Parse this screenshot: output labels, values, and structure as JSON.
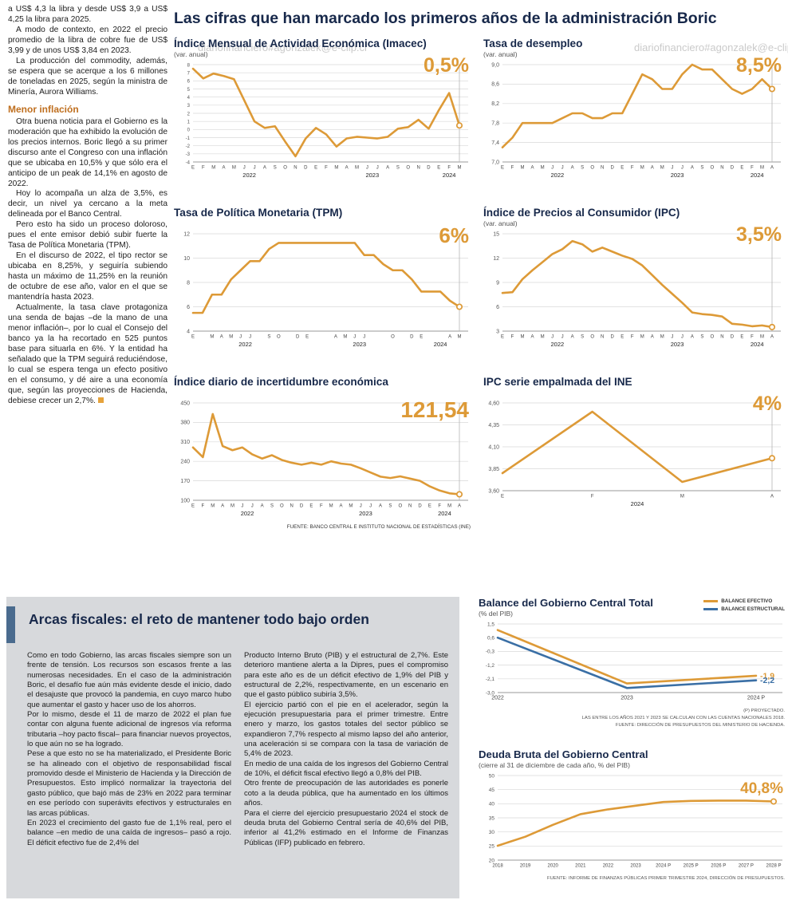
{
  "page": {
    "watermark": "diariofinanciero#agonzalek@e-clip.cl",
    "accent_orange": "#dd9a37",
    "accent_blue": "#3a6fa5",
    "panel_gray": "#d7d9dc"
  },
  "left_column": {
    "paragraphs": [
      "a US$ 4,3 la libra y desde US$ 3,9 a US$ 4,25 la libra para 2025.",
      "A modo de contexto, en 2022 el precio promedio de la libra de cobre fue de US$ 3,99 y de unos US$ 3,84 en 2023.",
      "La producción del commodity, además, se espera que se acerque a los 6 millones de toneladas en 2025, según la ministra de Minería, Aurora Williams."
    ],
    "heading": "Menor inflación",
    "paragraphs2": [
      "Otra buena noticia para el Gobierno es la moderación que ha exhibido la evolución de los precios internos. Boric llegó a su primer discurso ante el Congreso con una inflación que se ubicaba en 10,5% y que sólo era el anticipo de un peak de 14,1% en agosto de 2022.",
      "Hoy lo acompaña un alza de 3,5%, es decir, un nivel ya cercano a la meta delineada por el Banco Central.",
      "Pero esto ha sido un proceso doloroso, pues el ente emisor debió subir fuerte la Tasa de Política Monetaria (TPM).",
      "En el discurso de 2022, el tipo rector se ubicaba en 8,25%, y seguiría subiendo hasta un máximo de 11,25% en la reunión de octubre de ese año, valor en el que se mantendría hasta 2023.",
      "Actualmente, la tasa clave protagoniza una senda de bajas –de la mano de una menor inflación–, por lo cual el Consejo del banco ya la ha recortado en 525 puntos base para situarla en 6%. Y la entidad ha señalado que la TPM seguirá reduciéndose, lo cual se espera tenga un efecto positivo en el consumo, y dé aire a una economía que, según las proyecciones de Hacienda, debiese crecer un 2,7%."
    ]
  },
  "main": {
    "title": "Las cifras que han marcado los primeros años de la administración Boric",
    "source_ine": "FUENTE: BANCO CENTRAL E INSTITUTO NACIONAL DE ESTADÍSTICAS (INE)"
  },
  "fiscal": {
    "title": "Arcas fiscales: el reto de mantener todo bajo orden",
    "col1": [
      "Como en todo Gobierno, las arcas fiscales siempre son un frente de tensión. Los recursos son escasos frente a las numerosas necesidades. En el caso de la administración Boric, el desafío fue aún más evidente desde el inicio, dado el desajuste que provocó la pandemia, en cuyo marco hubo que aumentar el gasto y hacer uso de los ahorros.",
      "Por lo mismo, desde el 11 de marzo de 2022 el plan fue contar con alguna fuente adicional de ingresos vía reforma tributaria –hoy pacto fiscal– para financiar nuevos proyectos, lo que aún no se ha logrado.",
      "Pese a que esto no se ha materializado, el Presidente Boric se ha alineado con el objetivo de responsabilidad fiscal promovido desde el Ministerio de Hacienda y la Dirección de Presupuestos. Esto implicó normalizar la trayectoria del gasto público, que bajó más de 23% en 2022 para terminar en ese período con superávits efectivos y estructurales en las arcas públicas.",
      "En 2023 el crecimiento del gasto fue de 1,1% real, pero el balance –en medio de una caída de ingresos– pasó a rojo. El déficit efectivo fue de 2,4% del"
    ],
    "col2": [
      "Producto Interno Bruto (PIB) y el estructural de 2,7%. Este deterioro mantiene alerta a la Dipres, pues el compromiso para este año es de un déficit efectivo de 1,9% del PIB y estructural de 2,2%, respectivamente, en un escenario en que el gasto público subiría 3,5%.",
      "El ejercicio partió con el pie en el acelerador, según la ejecución presupuestaria para el primer trimestre. Entre enero y marzo, los gastos totales del sector público se expandieron 7,7% respecto al mismo lapso del año anterior, una aceleración si se compara con la tasa de variación de 5,4% de 2023.",
      "En medio de una caída de los ingresos del Gobierno Central de 10%, el déficit fiscal efectivo llegó a 0,8% del PIB.",
      "Otro frente de preocupación de las autoridades es ponerle coto a la deuda pública, que ha aumentado en los últimos años.",
      "Para el cierre del ejercicio presupuestario 2024 el stock de deuda bruta del Gobierno Central sería de 40,6% del PIB, inferior al 41,2% estimado en el Informe de Finanzas Públicas (IFP) publicado en febrero."
    ]
  },
  "chart_data": [
    {
      "id": "imacec",
      "type": "line",
      "title": "Índice Mensual de Actividad Económica (Imacec)",
      "subtitle": "(var. anual)",
      "big_value": "0,5%",
      "color": "#dd9a37",
      "ylim": [
        -4,
        8
      ],
      "yfont": 6,
      "yticks": [
        {
          "v": 8,
          "l": "8"
        },
        {
          "v": 7,
          "l": "7"
        },
        {
          "v": 6,
          "l": "6"
        },
        {
          "v": 5,
          "l": "5"
        },
        {
          "v": 4,
          "l": "4"
        },
        {
          "v": 3,
          "l": "3"
        },
        {
          "v": 2,
          "l": "2"
        },
        {
          "v": 1,
          "l": "1"
        },
        {
          "v": 0,
          "l": "0"
        },
        {
          "v": -1,
          "l": "-1"
        },
        {
          "v": -2,
          "l": "-2"
        },
        {
          "v": -3,
          "l": "-3"
        },
        {
          "v": -4,
          "l": "-4"
        }
      ],
      "x_labels": [
        "E",
        "F",
        "M",
        "A",
        "M",
        "J",
        "J",
        "A",
        "S",
        "O",
        "N",
        "D",
        "E",
        "F",
        "M",
        "A",
        "M",
        "J",
        "J",
        "A",
        "S",
        "O",
        "N",
        "D",
        "E",
        "F",
        "M"
      ],
      "years": [
        {
          "label": "2022",
          "at": 5.5
        },
        {
          "label": "2023",
          "at": 17.5
        },
        {
          "label": "2024",
          "at": 25
        }
      ],
      "values": [
        7.5,
        6.3,
        6.9,
        6.6,
        6.2,
        3.6,
        1.0,
        0.2,
        0.4,
        -1.5,
        -3.3,
        -1.1,
        0.2,
        -0.6,
        -2.1,
        -1.1,
        -0.9,
        -1.0,
        -1.1,
        -0.9,
        0.1,
        0.3,
        1.2,
        0.1,
        2.4,
        4.5,
        0.5
      ]
    },
    {
      "id": "desempleo",
      "type": "line",
      "title": "Tasa de desempleo",
      "subtitle": "(var. anual)",
      "big_value": "8,5%",
      "color": "#dd9a37",
      "ylim": [
        7.0,
        9.0
      ],
      "yticks": [
        {
          "v": 9.0,
          "l": "9,0"
        },
        {
          "v": 8.6,
          "l": "8,6"
        },
        {
          "v": 8.2,
          "l": "8,2"
        },
        {
          "v": 7.8,
          "l": "7,8"
        },
        {
          "v": 7.4,
          "l": "7,4"
        },
        {
          "v": 7.0,
          "l": "7,0"
        }
      ],
      "x_labels": [
        "E",
        "F",
        "M",
        "A",
        "M",
        "J",
        "J",
        "A",
        "S",
        "O",
        "N",
        "D",
        "E",
        "F",
        "M",
        "A",
        "M",
        "J",
        "J",
        "A",
        "S",
        "O",
        "N",
        "D",
        "E",
        "F",
        "M",
        "A"
      ],
      "years": [
        {
          "label": "2022",
          "at": 5.5
        },
        {
          "label": "2023",
          "at": 17.5
        },
        {
          "label": "2024",
          "at": 25.5
        }
      ],
      "values": [
        7.3,
        7.5,
        7.8,
        7.8,
        7.8,
        7.8,
        7.9,
        8.0,
        8.0,
        7.9,
        7.9,
        8.0,
        8.0,
        8.4,
        8.8,
        8.7,
        8.5,
        8.5,
        8.8,
        9.0,
        8.9,
        8.9,
        8.7,
        8.5,
        8.4,
        8.5,
        8.7,
        8.5
      ]
    },
    {
      "id": "tpm",
      "type": "line",
      "title": "Tasa de Política Monetaria (TPM)",
      "subtitle": "",
      "big_value": "6%",
      "color": "#dd9a37",
      "ylim": [
        4,
        12
      ],
      "yticks": [
        {
          "v": 12,
          "l": "12"
        },
        {
          "v": 10,
          "l": "10"
        },
        {
          "v": 8,
          "l": "8"
        },
        {
          "v": 6,
          "l": "6"
        },
        {
          "v": 4,
          "l": "4"
        }
      ],
      "x_labels": [
        "E",
        "",
        "M",
        "A",
        "M",
        "J",
        "J",
        "",
        "S",
        "O",
        "",
        "D",
        "E",
        "",
        "",
        "A",
        "M",
        "J",
        "J",
        "",
        "",
        "O",
        "",
        "D",
        "E",
        "",
        "",
        "A",
        "M"
      ],
      "years": [
        {
          "label": "2022",
          "at": 5.5
        },
        {
          "label": "2023",
          "at": 17.5
        },
        {
          "label": "2024",
          "at": 26
        }
      ],
      "values": [
        5.5,
        5.5,
        7.0,
        7.0,
        8.25,
        9.0,
        9.75,
        9.75,
        10.75,
        11.25,
        11.25,
        11.25,
        11.25,
        11.25,
        11.25,
        11.25,
        11.25,
        11.25,
        10.25,
        10.25,
        9.5,
        9.0,
        9.0,
        8.25,
        7.25,
        7.25,
        7.25,
        6.5,
        6.0
      ]
    },
    {
      "id": "ipc",
      "type": "line",
      "title": "Índice de Precios al Consumidor (IPC)",
      "subtitle": "(var. anual)",
      "big_value": "3,5%",
      "color": "#dd9a37",
      "ylim": [
        3,
        15
      ],
      "yticks": [
        {
          "v": 15,
          "l": "15"
        },
        {
          "v": 12,
          "l": "12"
        },
        {
          "v": 9,
          "l": "9"
        },
        {
          "v": 6,
          "l": "6"
        },
        {
          "v": 3,
          "l": "3"
        }
      ],
      "x_labels": [
        "E",
        "F",
        "M",
        "A",
        "M",
        "J",
        "J",
        "A",
        "S",
        "O",
        "N",
        "D",
        "E",
        "F",
        "M",
        "A",
        "M",
        "J",
        "J",
        "A",
        "S",
        "O",
        "N",
        "D",
        "E",
        "F",
        "M",
        "A"
      ],
      "years": [
        {
          "label": "2022",
          "at": 5.5
        },
        {
          "label": "2023",
          "at": 17.5
        },
        {
          "label": "2024",
          "at": 25.5
        }
      ],
      "values": [
        7.7,
        7.8,
        9.4,
        10.5,
        11.5,
        12.5,
        13.1,
        14.1,
        13.7,
        12.8,
        13.3,
        12.8,
        12.3,
        11.9,
        11.1,
        9.9,
        8.7,
        7.6,
        6.5,
        5.3,
        5.1,
        5.0,
        4.8,
        3.9,
        3.8,
        3.6,
        3.7,
        3.5
      ]
    },
    {
      "id": "incertidumbre",
      "type": "line",
      "title": "Índice diario de incertidumbre económica",
      "subtitle": "",
      "big_value": "121,54",
      "color": "#dd9a37",
      "ylim": [
        100,
        450
      ],
      "yticks": [
        {
          "v": 450,
          "l": "450"
        },
        {
          "v": 380,
          "l": "380"
        },
        {
          "v": 310,
          "l": "310"
        },
        {
          "v": 240,
          "l": "240"
        },
        {
          "v": 170,
          "l": "170"
        },
        {
          "v": 100,
          "l": "100"
        }
      ],
      "x_labels": [
        "E",
        "F",
        "M",
        "A",
        "M",
        "J",
        "J",
        "A",
        "S",
        "O",
        "N",
        "D",
        "E",
        "F",
        "M",
        "A",
        "M",
        "J",
        "J",
        "A",
        "S",
        "O",
        "N",
        "D",
        "E",
        "F",
        "M",
        "A"
      ],
      "years": [
        {
          "label": "2022",
          "at": 5.5
        },
        {
          "label": "2023",
          "at": 17.5
        },
        {
          "label": "2024",
          "at": 25.5
        }
      ],
      "values": [
        290,
        255,
        410,
        295,
        280,
        290,
        265,
        250,
        262,
        245,
        235,
        228,
        235,
        228,
        240,
        232,
        228,
        215,
        200,
        185,
        180,
        186,
        178,
        170,
        150,
        135,
        125,
        121.54
      ]
    },
    {
      "id": "ipc-empalmada",
      "type": "line",
      "title": "IPC serie empalmada del INE",
      "subtitle": "",
      "big_value": "4%",
      "color": "#dd9a37",
      "ylim": [
        3.6,
        4.6
      ],
      "yticks": [
        {
          "v": 4.6,
          "l": "4,60"
        },
        {
          "v": 4.35,
          "l": "4,35"
        },
        {
          "v": 4.1,
          "l": "4,10"
        },
        {
          "v": 3.85,
          "l": "3,85"
        },
        {
          "v": 3.6,
          "l": "3,60"
        }
      ],
      "x_labels": [
        "E",
        "F",
        "M",
        "A"
      ],
      "years": [
        {
          "label": "2024",
          "at": 1.5
        }
      ],
      "values": [
        3.8,
        4.5,
        3.7,
        3.97
      ]
    },
    {
      "id": "balance",
      "type": "line",
      "title": "Balance del Gobierno Central Total",
      "subtitle": "(% del PIB)",
      "big_value": "",
      "ylim": [
        -3.0,
        1.5
      ],
      "yfont": 6.5,
      "xfont": 7,
      "mr": 36,
      "end_line": false,
      "yticks": [
        {
          "v": 1.5,
          "l": "1,5"
        },
        {
          "v": 0.6,
          "l": "0,6"
        },
        {
          "v": -0.3,
          "l": "-0,3"
        },
        {
          "v": -1.2,
          "l": "-1,2"
        },
        {
          "v": -2.1,
          "l": "-2,1"
        },
        {
          "v": -3.0,
          "l": "-3,0"
        }
      ],
      "x_labels": [
        "2022",
        "2023",
        "2024 P"
      ],
      "series": [
        {
          "name": "BALANCE EFECTIVO",
          "color": "#dd9a37",
          "end_label": "-1,9",
          "values": [
            1.1,
            -2.4,
            -1.9
          ]
        },
        {
          "name": "BALANCE ESTRUCTURAL",
          "color": "#3a6fa5",
          "end_label": "-2,2",
          "values": [
            0.6,
            -2.7,
            -2.2
          ]
        }
      ],
      "legend": [
        "BALANCE EFECTIVO",
        "BALANCE ESTRUCTURAL"
      ],
      "notes": [
        "(P) PROYECTADO.",
        "LAS ENTRE LOS AÑOS 2021 Y 2023 SE CALCULAN  CON LAS CUENTAS NACIONALES 2018.",
        "FUENTE: DIRECCIÓN DE PRESUPUESTOS DEL MINISTERIO DE HACIENDA."
      ]
    },
    {
      "id": "deuda",
      "type": "line",
      "title": "Deuda Bruta del Gobierno Central",
      "subtitle": "(cierre al 31 de diciembre de cada año, % del PIB)",
      "big_value": "40,8%",
      "color": "#dd9a37",
      "ylim": [
        20,
        50
      ],
      "yfont": 6.5,
      "xfont": 6,
      "end_line": false,
      "yticks": [
        {
          "v": 50,
          "l": "50"
        },
        {
          "v": 45,
          "l": "45"
        },
        {
          "v": 40,
          "l": "40"
        },
        {
          "v": 35,
          "l": "35"
        },
        {
          "v": 30,
          "l": "30"
        },
        {
          "v": 25,
          "l": "25"
        },
        {
          "v": 20,
          "l": "20"
        }
      ],
      "x_labels": [
        "2018",
        "2019",
        "2020",
        "2021",
        "2022",
        "2023",
        "2024 P",
        "2025 P",
        "2026 P",
        "2027 P",
        "2028 P"
      ],
      "values": [
        25.1,
        28.3,
        32.5,
        36.3,
        38.0,
        39.3,
        40.6,
        41.0,
        41.1,
        41.1,
        40.8
      ],
      "source": "FUENTE: INFORME DE FINANZAS PÚBLICAS PRIMER TRIMESTRE 2024, DIRECCIÓN DE PRESUPUESTOS."
    }
  ]
}
